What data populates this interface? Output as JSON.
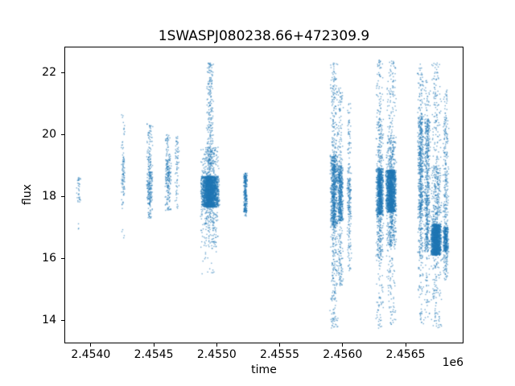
{
  "figure": {
    "title": "1SWASPJ080238.66+472309.9"
  },
  "chart_data": {
    "type": "scatter",
    "title": "1SWASPJ080238.66+472309.9",
    "xlabel": "time",
    "ylabel": "flux",
    "x_offset_label": "1e6",
    "xlim": [
      2453790,
      2456960
    ],
    "ylim": [
      13.26,
      22.83
    ],
    "grid": false,
    "legend": "none",
    "marker_color": "#1f77b4",
    "marker_alpha": 0.6,
    "marker_size": 1.4,
    "xticks": [
      {
        "value": 2454000,
        "label": "2.4540"
      },
      {
        "value": 2454500,
        "label": "2.4545"
      },
      {
        "value": 2455000,
        "label": "2.4550"
      },
      {
        "value": 2455500,
        "label": "2.4555"
      },
      {
        "value": 2456000,
        "label": "2.4560"
      },
      {
        "value": 2456500,
        "label": "2.4565"
      }
    ],
    "yticks": [
      {
        "value": 14,
        "label": "14"
      },
      {
        "value": 16,
        "label": "16"
      },
      {
        "value": 18,
        "label": "18"
      },
      {
        "value": 20,
        "label": "20"
      },
      {
        "value": 22,
        "label": "22"
      }
    ],
    "clusters": [
      {
        "x": 2453905,
        "xw": 19,
        "segments": [
          {
            "y_min": 17.8,
            "y_max": 18.65,
            "n": 35
          },
          {
            "y_min": 16.85,
            "y_max": 17.15,
            "n": 3
          }
        ]
      },
      {
        "x": 2454257,
        "xw": 16,
        "segments": [
          {
            "y_min": 17.6,
            "y_max": 20.65,
            "n": 55
          },
          {
            "y_min": 18.1,
            "y_max": 19.3,
            "n": 45
          },
          {
            "y_min": 16.65,
            "y_max": 16.95,
            "n": 4
          }
        ]
      },
      {
        "x": 2454467,
        "xw": 26,
        "segments": [
          {
            "y_min": 17.3,
            "y_max": 20.35,
            "n": 160
          },
          {
            "y_min": 17.7,
            "y_max": 18.8,
            "n": 120
          }
        ]
      },
      {
        "x": 2454614,
        "xw": 26,
        "segments": [
          {
            "y_min": 17.5,
            "y_max": 20.0,
            "n": 130
          },
          {
            "y_min": 18.3,
            "y_max": 19.2,
            "n": 90
          }
        ]
      },
      {
        "x": 2454685,
        "xw": 19,
        "segments": [
          {
            "y_min": 17.6,
            "y_max": 19.95,
            "n": 70
          }
        ]
      },
      {
        "x": 2454947,
        "xw": 77,
        "segments": [
          {
            "y_min": 17.65,
            "y_max": 18.65,
            "n": 2200
          },
          {
            "y_min": 16.9,
            "y_max": 19.6,
            "n": 500
          },
          {
            "y_min": 16.3,
            "y_max": 17.0,
            "n": 60
          },
          {
            "y_min": 15.5,
            "y_max": 16.3,
            "n": 15
          }
        ]
      },
      {
        "x": 2454947,
        "xw": 30,
        "segments": [
          {
            "y_min": 18.7,
            "y_max": 22.3,
            "n": 220
          }
        ]
      },
      {
        "x": 2455228,
        "xw": 16,
        "segments": [
          {
            "y_min": 17.5,
            "y_max": 18.75,
            "n": 280
          },
          {
            "y_min": 17.35,
            "y_max": 17.55,
            "n": 15
          }
        ]
      },
      {
        "x": 2455931,
        "xw": 32,
        "segments": [
          {
            "y_min": 17.0,
            "y_max": 19.3,
            "n": 700
          },
          {
            "y_min": 14.0,
            "y_max": 17.0,
            "n": 150
          },
          {
            "y_min": 19.3,
            "y_max": 22.3,
            "n": 150
          },
          {
            "y_min": 13.75,
            "y_max": 14.0,
            "n": 15
          }
        ]
      },
      {
        "x": 2455982,
        "xw": 26,
        "segments": [
          {
            "y_min": 17.2,
            "y_max": 19.0,
            "n": 500
          },
          {
            "y_min": 15.0,
            "y_max": 17.2,
            "n": 100
          },
          {
            "y_min": 19.0,
            "y_max": 21.5,
            "n": 80
          }
        ]
      },
      {
        "x": 2456052,
        "xw": 19,
        "segments": [
          {
            "y_min": 17.4,
            "y_max": 18.6,
            "n": 120
          },
          {
            "y_min": 15.6,
            "y_max": 17.4,
            "n": 60
          },
          {
            "y_min": 18.6,
            "y_max": 21.0,
            "n": 60
          }
        ]
      },
      {
        "x": 2456295,
        "xw": 32,
        "segments": [
          {
            "y_min": 17.4,
            "y_max": 18.9,
            "n": 900
          },
          {
            "y_min": 16.0,
            "y_max": 17.4,
            "n": 150
          },
          {
            "y_min": 18.9,
            "y_max": 20.5,
            "n": 120
          },
          {
            "y_min": 13.7,
            "y_max": 16.0,
            "n": 60
          },
          {
            "y_min": 20.5,
            "y_max": 22.4,
            "n": 60
          }
        ]
      },
      {
        "x": 2456385,
        "xw": 45,
        "segments": [
          {
            "y_min": 17.5,
            "y_max": 18.85,
            "n": 1600
          },
          {
            "y_min": 16.4,
            "y_max": 17.5,
            "n": 200
          },
          {
            "y_min": 18.85,
            "y_max": 20.0,
            "n": 150
          },
          {
            "y_min": 13.8,
            "y_max": 16.4,
            "n": 80
          },
          {
            "y_min": 20.0,
            "y_max": 22.4,
            "n": 90
          }
        ]
      },
      {
        "x": 2456621,
        "xw": 26,
        "segments": [
          {
            "y_min": 17.4,
            "y_max": 20.6,
            "n": 500
          },
          {
            "y_min": 16.0,
            "y_max": 17.4,
            "n": 100
          },
          {
            "y_min": 13.8,
            "y_max": 16.0,
            "n": 50
          },
          {
            "y_min": 20.6,
            "y_max": 22.3,
            "n": 60
          }
        ]
      },
      {
        "x": 2456672,
        "xw": 26,
        "segments": [
          {
            "y_min": 17.3,
            "y_max": 20.5,
            "n": 400
          },
          {
            "y_min": 16.2,
            "y_max": 17.3,
            "n": 150
          },
          {
            "y_min": 14.0,
            "y_max": 16.2,
            "n": 40
          },
          {
            "y_min": 20.5,
            "y_max": 21.8,
            "n": 30
          }
        ]
      },
      {
        "x": 2456743,
        "xw": 45,
        "segments": [
          {
            "y_min": 16.1,
            "y_max": 17.1,
            "n": 1800
          },
          {
            "y_min": 17.1,
            "y_max": 19.0,
            "n": 250
          },
          {
            "y_min": 13.7,
            "y_max": 16.1,
            "n": 100
          },
          {
            "y_min": 19.0,
            "y_max": 22.3,
            "n": 120
          }
        ]
      },
      {
        "x": 2456819,
        "xw": 26,
        "segments": [
          {
            "y_min": 16.2,
            "y_max": 17.0,
            "n": 350
          },
          {
            "y_min": 17.0,
            "y_max": 20.5,
            "n": 200
          },
          {
            "y_min": 15.3,
            "y_max": 16.2,
            "n": 60
          },
          {
            "y_min": 20.5,
            "y_max": 21.5,
            "n": 25
          }
        ]
      }
    ]
  }
}
